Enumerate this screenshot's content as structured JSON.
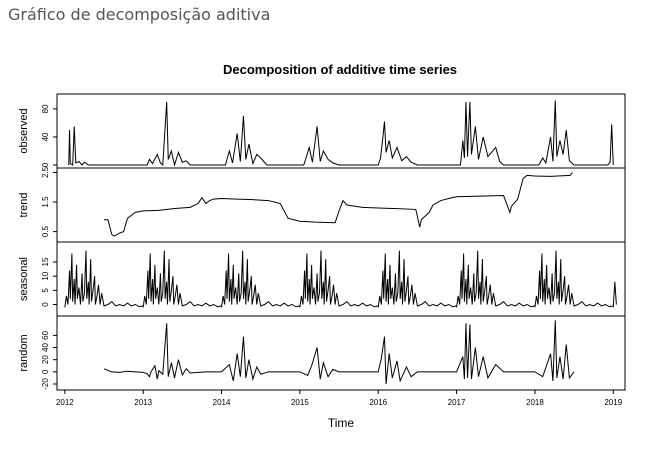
{
  "page": {
    "heading": "Gráfico de decomposição aditiva"
  },
  "chart_data": {
    "type": "line",
    "title": "Decomposition of additive time series",
    "xlabel": "Time",
    "xlim": [
      2011.9,
      2019.15
    ],
    "x_ticks": [
      2012,
      2013,
      2014,
      2015,
      2016,
      2017,
      2018,
      2019
    ],
    "line_color": "#000000",
    "panels": [
      {
        "name": "observed",
        "ylim": [
          0,
          97
        ],
        "y_ticks": [
          0,
          40,
          80
        ],
        "y_tick_labels": [
          "0",
          "40",
          "80"
        ],
        "series": [
          [
            2012.05,
            0
          ],
          [
            2012.06,
            50
          ],
          [
            2012.07,
            2
          ],
          [
            2012.1,
            0
          ],
          [
            2012.12,
            55
          ],
          [
            2012.14,
            3
          ],
          [
            2012.18,
            5
          ],
          [
            2012.22,
            0
          ],
          [
            2012.25,
            4
          ],
          [
            2012.3,
            0
          ],
          [
            2013.05,
            0
          ],
          [
            2013.08,
            8
          ],
          [
            2013.12,
            2
          ],
          [
            2013.18,
            15
          ],
          [
            2013.22,
            3
          ],
          [
            2013.25,
            0
          ],
          [
            2013.3,
            90
          ],
          [
            2013.32,
            8
          ],
          [
            2013.36,
            20
          ],
          [
            2013.4,
            0
          ],
          [
            2013.45,
            18
          ],
          [
            2013.5,
            4
          ],
          [
            2013.55,
            6
          ],
          [
            2013.6,
            0
          ],
          [
            2014.05,
            0
          ],
          [
            2014.1,
            20
          ],
          [
            2014.14,
            3
          ],
          [
            2014.2,
            45
          ],
          [
            2014.24,
            5
          ],
          [
            2014.28,
            70
          ],
          [
            2014.31,
            8
          ],
          [
            2014.35,
            30
          ],
          [
            2014.4,
            2
          ],
          [
            2014.45,
            15
          ],
          [
            2014.5,
            10
          ],
          [
            2014.58,
            0
          ],
          [
            2015.05,
            0
          ],
          [
            2015.12,
            25
          ],
          [
            2015.16,
            4
          ],
          [
            2015.22,
            55
          ],
          [
            2015.26,
            5
          ],
          [
            2015.3,
            20
          ],
          [
            2015.36,
            8
          ],
          [
            2015.42,
            3
          ],
          [
            2015.5,
            0
          ],
          [
            2016.0,
            0
          ],
          [
            2016.03,
            10
          ],
          [
            2016.06,
            40
          ],
          [
            2016.08,
            62
          ],
          [
            2016.1,
            18
          ],
          [
            2016.14,
            35
          ],
          [
            2016.18,
            10
          ],
          [
            2016.24,
            25
          ],
          [
            2016.3,
            6
          ],
          [
            2016.36,
            12
          ],
          [
            2016.42,
            4
          ],
          [
            2016.5,
            0
          ],
          [
            2017.05,
            0
          ],
          [
            2017.08,
            35
          ],
          [
            2017.1,
            10
          ],
          [
            2017.12,
            90
          ],
          [
            2017.14,
            12
          ],
          [
            2017.17,
            90
          ],
          [
            2017.19,
            15
          ],
          [
            2017.24,
            55
          ],
          [
            2017.28,
            8
          ],
          [
            2017.34,
            40
          ],
          [
            2017.4,
            12
          ],
          [
            2017.5,
            25
          ],
          [
            2017.55,
            5
          ],
          [
            2017.6,
            0
          ],
          [
            2018.05,
            0
          ],
          [
            2018.1,
            10
          ],
          [
            2018.14,
            3
          ],
          [
            2018.2,
            40
          ],
          [
            2018.23,
            5
          ],
          [
            2018.26,
            92
          ],
          [
            2018.28,
            12
          ],
          [
            2018.32,
            35
          ],
          [
            2018.36,
            15
          ],
          [
            2018.4,
            50
          ],
          [
            2018.44,
            6
          ],
          [
            2018.5,
            0
          ],
          [
            2018.93,
            0
          ],
          [
            2018.96,
            4
          ],
          [
            2018.98,
            58
          ],
          [
            2019.0,
            0
          ]
        ]
      },
      {
        "name": "trend",
        "ylim": [
          0.25,
          2.55
        ],
        "y_ticks": [
          0.5,
          1.5,
          2.5
        ],
        "y_tick_labels": [
          "0.5",
          "1.5",
          "2.5"
        ],
        "series": [
          [
            2012.5,
            0.9
          ],
          [
            2012.55,
            0.9
          ],
          [
            2012.6,
            0.4
          ],
          [
            2012.63,
            0.35
          ],
          [
            2012.7,
            0.45
          ],
          [
            2012.75,
            0.5
          ],
          [
            2012.8,
            0.95
          ],
          [
            2012.9,
            1.15
          ],
          [
            2013.0,
            1.2
          ],
          [
            2013.2,
            1.22
          ],
          [
            2013.4,
            1.28
          ],
          [
            2013.6,
            1.32
          ],
          [
            2013.7,
            1.45
          ],
          [
            2013.75,
            1.65
          ],
          [
            2013.8,
            1.45
          ],
          [
            2013.85,
            1.55
          ],
          [
            2013.9,
            1.6
          ],
          [
            2014.0,
            1.62
          ],
          [
            2014.2,
            1.6
          ],
          [
            2014.4,
            1.58
          ],
          [
            2014.6,
            1.55
          ],
          [
            2014.75,
            1.45
          ],
          [
            2014.85,
            0.95
          ],
          [
            2015.0,
            0.85
          ],
          [
            2015.2,
            0.82
          ],
          [
            2015.45,
            0.8
          ],
          [
            2015.5,
            1.2
          ],
          [
            2015.55,
            1.55
          ],
          [
            2015.6,
            1.4
          ],
          [
            2015.8,
            1.32
          ],
          [
            2016.0,
            1.3
          ],
          [
            2016.2,
            1.28
          ],
          [
            2016.48,
            1.25
          ],
          [
            2016.53,
            0.65
          ],
          [
            2016.55,
            0.9
          ],
          [
            2016.65,
            1.15
          ],
          [
            2016.7,
            1.4
          ],
          [
            2016.8,
            1.55
          ],
          [
            2016.9,
            1.62
          ],
          [
            2017.0,
            1.68
          ],
          [
            2017.3,
            1.7
          ],
          [
            2017.6,
            1.72
          ],
          [
            2017.68,
            1.15
          ],
          [
            2017.7,
            1.35
          ],
          [
            2017.78,
            1.6
          ],
          [
            2017.85,
            2.3
          ],
          [
            2017.9,
            2.4
          ],
          [
            2018.0,
            2.38
          ],
          [
            2018.2,
            2.37
          ],
          [
            2018.45,
            2.4
          ],
          [
            2018.48,
            2.5
          ]
        ]
      },
      {
        "name": "seasonal",
        "ylim": [
          -3,
          21
        ],
        "y_ticks": [
          0,
          5,
          10,
          15
        ],
        "y_tick_labels": [
          "0",
          "5",
          "10",
          "15"
        ],
        "period_start": 2012.0,
        "period_end": 2019.0,
        "pattern": [
          [
            0.0,
            -1
          ],
          [
            0.02,
            3
          ],
          [
            0.04,
            0
          ],
          [
            0.06,
            12
          ],
          [
            0.07,
            2
          ],
          [
            0.09,
            18
          ],
          [
            0.1,
            1
          ],
          [
            0.12,
            9
          ],
          [
            0.13,
            0
          ],
          [
            0.15,
            14
          ],
          [
            0.16,
            2
          ],
          [
            0.18,
            6
          ],
          [
            0.2,
            0
          ],
          [
            0.22,
            11
          ],
          [
            0.23,
            1
          ],
          [
            0.25,
            4
          ],
          [
            0.27,
            19
          ],
          [
            0.28,
            2
          ],
          [
            0.3,
            8
          ],
          [
            0.31,
            0
          ],
          [
            0.33,
            16
          ],
          [
            0.34,
            1
          ],
          [
            0.36,
            5
          ],
          [
            0.38,
            10
          ],
          [
            0.39,
            0
          ],
          [
            0.41,
            3
          ],
          [
            0.43,
            7
          ],
          [
            0.45,
            0
          ],
          [
            0.47,
            4
          ],
          [
            0.5,
            -0.5
          ],
          [
            0.55,
            0
          ],
          [
            0.6,
            1
          ],
          [
            0.65,
            -0.5
          ],
          [
            0.7,
            0
          ],
          [
            0.75,
            -0.5
          ],
          [
            0.8,
            0.5
          ],
          [
            0.85,
            -0.5
          ],
          [
            0.9,
            0
          ],
          [
            0.95,
            -0.8
          ],
          [
            0.999,
            -0.5
          ]
        ],
        "tail": [
          [
            2019.0,
            -1
          ],
          [
            2019.02,
            8
          ],
          [
            2019.04,
            0
          ]
        ]
      },
      {
        "name": "random",
        "ylim": [
          -25,
          87
        ],
        "y_ticks": [
          -20,
          0,
          20,
          40,
          60
        ],
        "y_tick_labels": [
          "-20",
          "0",
          "20",
          "40",
          "60"
        ],
        "series": [
          [
            2012.5,
            5
          ],
          [
            2012.6,
            0
          ],
          [
            2012.7,
            -1
          ],
          [
            2012.8,
            1
          ],
          [
            2012.9,
            0
          ],
          [
            2013.0,
            -1
          ],
          [
            2013.05,
            -3
          ],
          [
            2013.08,
            -8
          ],
          [
            2013.1,
            0
          ],
          [
            2013.15,
            10
          ],
          [
            2013.18,
            -12
          ],
          [
            2013.2,
            2
          ],
          [
            2013.25,
            -4
          ],
          [
            2013.3,
            80
          ],
          [
            2013.32,
            -8
          ],
          [
            2013.36,
            15
          ],
          [
            2013.4,
            -10
          ],
          [
            2013.45,
            20
          ],
          [
            2013.5,
            -5
          ],
          [
            2013.55,
            5
          ],
          [
            2013.6,
            -2
          ],
          [
            2013.8,
            0
          ],
          [
            2014.0,
            0
          ],
          [
            2014.1,
            12
          ],
          [
            2014.15,
            -15
          ],
          [
            2014.2,
            30
          ],
          [
            2014.24,
            -8
          ],
          [
            2014.28,
            58
          ],
          [
            2014.31,
            -10
          ],
          [
            2014.35,
            20
          ],
          [
            2014.4,
            -12
          ],
          [
            2014.45,
            8
          ],
          [
            2014.5,
            -4
          ],
          [
            2014.6,
            0
          ],
          [
            2015.0,
            0
          ],
          [
            2015.1,
            -6
          ],
          [
            2015.15,
            10
          ],
          [
            2015.22,
            40
          ],
          [
            2015.26,
            -12
          ],
          [
            2015.3,
            15
          ],
          [
            2015.36,
            -8
          ],
          [
            2015.42,
            4
          ],
          [
            2015.5,
            0
          ],
          [
            2016.0,
            0
          ],
          [
            2016.04,
            22
          ],
          [
            2016.08,
            58
          ],
          [
            2016.1,
            -20
          ],
          [
            2016.14,
            30
          ],
          [
            2016.18,
            -10
          ],
          [
            2016.24,
            18
          ],
          [
            2016.28,
            -15
          ],
          [
            2016.36,
            8
          ],
          [
            2016.42,
            -8
          ],
          [
            2016.5,
            0
          ],
          [
            2017.0,
            0
          ],
          [
            2017.08,
            25
          ],
          [
            2017.1,
            -12
          ],
          [
            2017.12,
            80
          ],
          [
            2017.14,
            -10
          ],
          [
            2017.17,
            78
          ],
          [
            2017.19,
            -12
          ],
          [
            2017.24,
            40
          ],
          [
            2017.28,
            -8
          ],
          [
            2017.34,
            25
          ],
          [
            2017.4,
            -10
          ],
          [
            2017.5,
            12
          ],
          [
            2017.6,
            0
          ],
          [
            2018.0,
            0
          ],
          [
            2018.1,
            -8
          ],
          [
            2018.2,
            30
          ],
          [
            2018.23,
            -15
          ],
          [
            2018.26,
            85
          ],
          [
            2018.28,
            -10
          ],
          [
            2018.32,
            25
          ],
          [
            2018.36,
            -12
          ],
          [
            2018.4,
            45
          ],
          [
            2018.44,
            -10
          ],
          [
            2018.5,
            0
          ]
        ]
      }
    ]
  }
}
